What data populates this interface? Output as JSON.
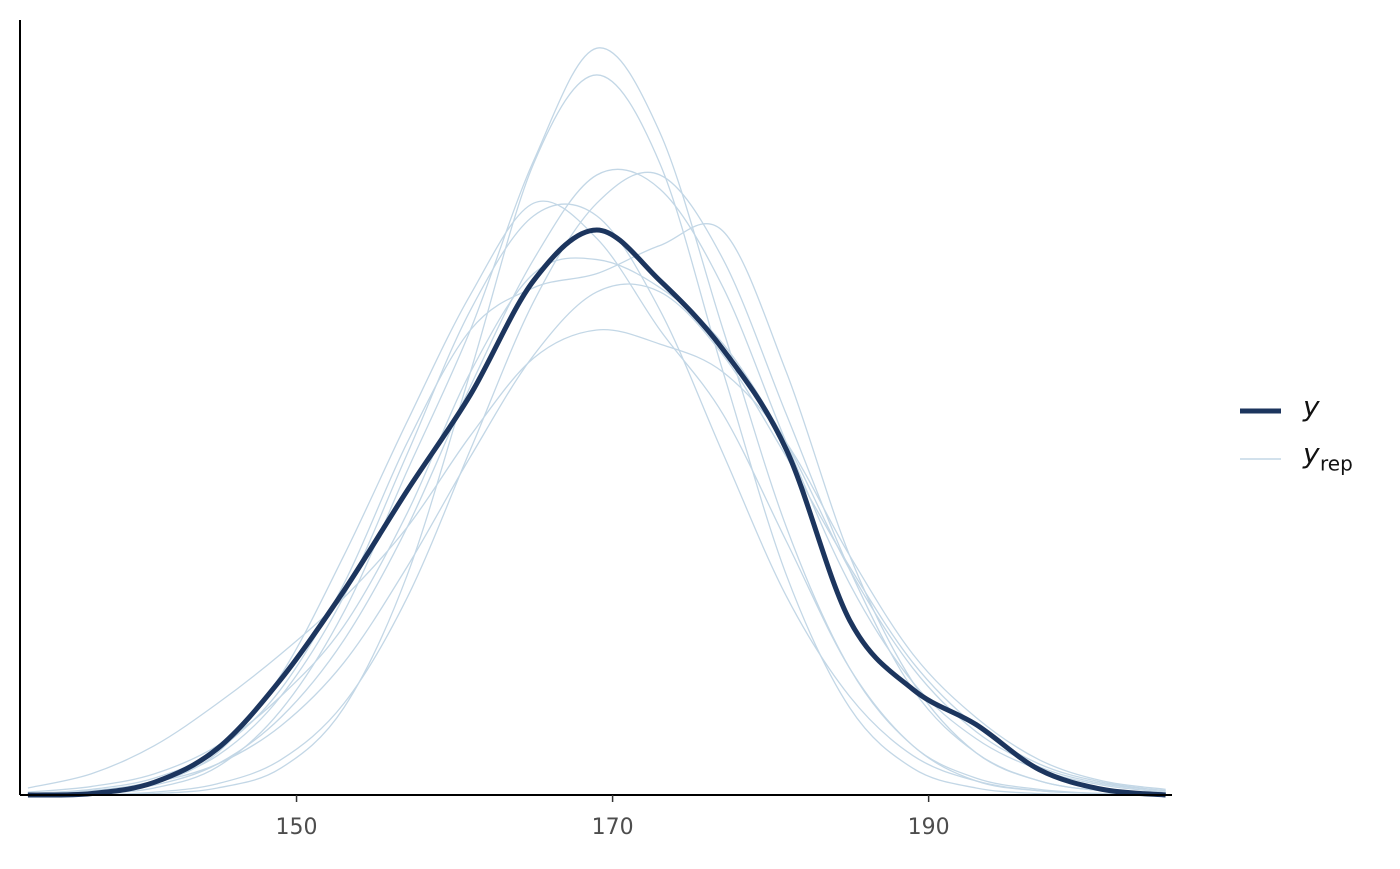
{
  "chart_data": {
    "type": "line",
    "x": [
      133,
      137,
      141,
      145,
      149,
      153,
      157,
      161,
      165,
      169,
      173,
      177,
      181,
      185,
      189,
      193,
      197,
      201,
      205
    ],
    "xlim": [
      132.5,
      205.4
    ],
    "ylim": [
      0,
      0.055
    ],
    "xticks": [
      150,
      170,
      190
    ],
    "legend": "right",
    "series": [
      {
        "name": "y",
        "color": "#1c355e",
        "values": [
          0,
          0.0001,
          0.0009,
          0.0033,
          0.0082,
          0.0145,
          0.0216,
          0.0284,
          0.0365,
          0.0401,
          0.0365,
          0.0316,
          0.0245,
          0.0124,
          0.0075,
          0.005,
          0.0018,
          0.0004,
          0
        ]
      }
    ],
    "replicates": {
      "name": "y",
      "subscript": "rep",
      "color": "#c3d7e6",
      "values": [
        [
          0.0001,
          0.0003,
          0.001,
          0.0028,
          0.007,
          0.0141,
          0.0242,
          0.0344,
          0.0411,
          0.0411,
          0.0344,
          0.0242,
          0.0141,
          0.007,
          0.0028,
          0.001,
          0.0003,
          0.0001,
          0
        ],
        [
          0,
          0,
          0.0001,
          0.0005,
          0.0019,
          0.0062,
          0.0156,
          0.03,
          0.0448,
          0.0511,
          0.0448,
          0.03,
          0.0156,
          0.0062,
          0.0019,
          0.0005,
          0.0001,
          0,
          0
        ],
        [
          0.0001,
          0.0003,
          0.0009,
          0.0022,
          0.0049,
          0.0094,
          0.0162,
          0.024,
          0.0312,
          0.0357,
          0.0357,
          0.0312,
          0.024,
          0.0162,
          0.0094,
          0.0049,
          0.0022,
          0.0009,
          0.0003
        ],
        [
          0,
          0.0001,
          0.0008,
          0.003,
          0.0085,
          0.017,
          0.0265,
          0.0355,
          0.042,
          0.0395,
          0.033,
          0.027,
          0.018,
          0.009,
          0.0035,
          0.001,
          0.0003,
          0.0001,
          0
        ],
        [
          0,
          0,
          0.0002,
          0.0008,
          0.0025,
          0.0065,
          0.014,
          0.0245,
          0.035,
          0.042,
          0.044,
          0.038,
          0.027,
          0.016,
          0.0075,
          0.003,
          0.001,
          0.0003,
          0.0001
        ],
        [
          0.0005,
          0.0015,
          0.0035,
          0.0065,
          0.01,
          0.014,
          0.019,
          0.0255,
          0.031,
          0.033,
          0.032,
          0.03,
          0.025,
          0.017,
          0.01,
          0.0055,
          0.0025,
          0.001,
          0.0004
        ],
        [
          0,
          0.0001,
          0.0005,
          0.002,
          0.006,
          0.013,
          0.023,
          0.033,
          0.045,
          0.053,
          0.047,
          0.033,
          0.019,
          0.009,
          0.0035,
          0.0012,
          0.0004,
          0.0001,
          0
        ],
        [
          0.0002,
          0.0006,
          0.0015,
          0.0035,
          0.007,
          0.012,
          0.02,
          0.03,
          0.037,
          0.038,
          0.036,
          0.032,
          0.025,
          0.016,
          0.009,
          0.0045,
          0.002,
          0.0008,
          0.0003
        ],
        [
          0,
          0.0002,
          0.0007,
          0.0022,
          0.0055,
          0.011,
          0.019,
          0.029,
          0.038,
          0.044,
          0.043,
          0.036,
          0.025,
          0.015,
          0.008,
          0.004,
          0.0018,
          0.0007,
          0.0002
        ],
        [
          0.0001,
          0.0004,
          0.0012,
          0.0032,
          0.0075,
          0.015,
          0.025,
          0.033,
          0.036,
          0.037,
          0.039,
          0.04,
          0.03,
          0.017,
          0.008,
          0.003,
          0.001,
          0.0003,
          0.0001
        ]
      ]
    }
  }
}
